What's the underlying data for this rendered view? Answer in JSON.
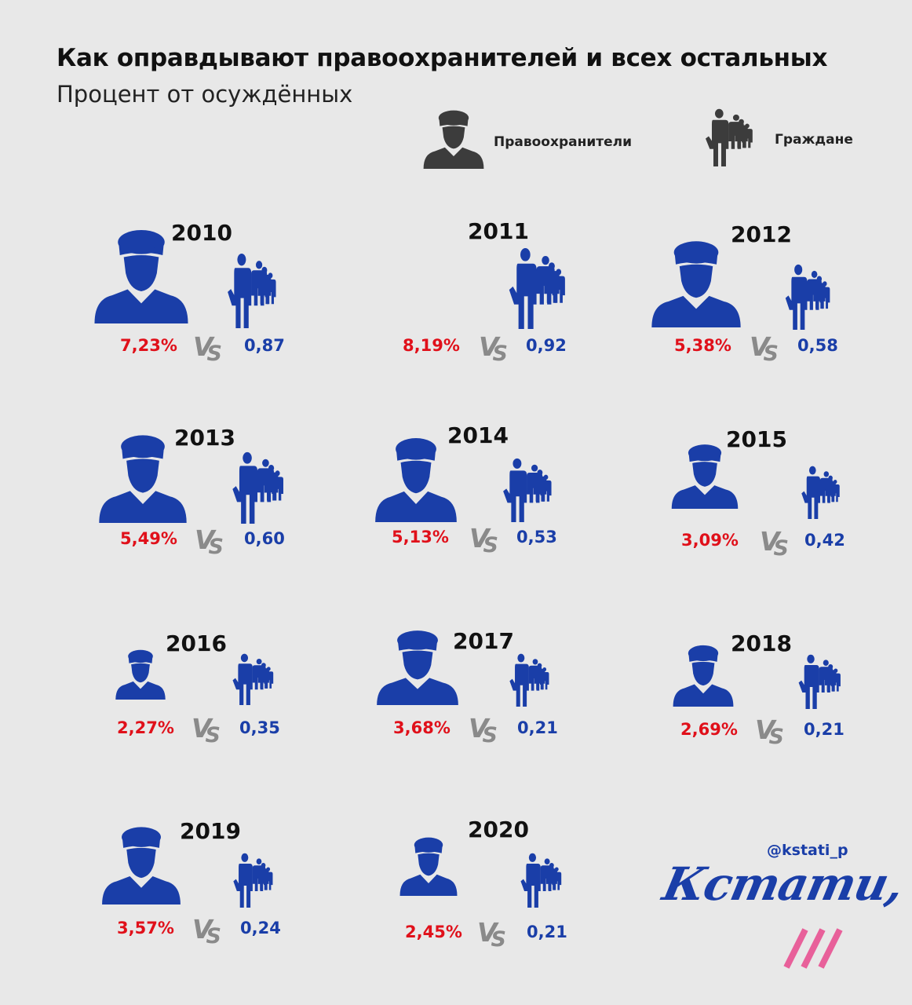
{
  "title": "Как оправдывают правоохранителей и всех остальных",
  "subtitle": "Процент от осуждённых",
  "legend": {
    "police_label": "Правоохранители",
    "police_icon": "police-officer-icon",
    "citizens_label": "Граждане",
    "citizens_icon": "citizens-group-icon"
  },
  "vs_text": {
    "v": "V",
    "s": "S"
  },
  "colors": {
    "background": "#e8e8e8",
    "police_value": "#e0101a",
    "citizen_value": "#1a3ea8",
    "icon_blue": "#1a3ea8",
    "legend_icon": "#3c3c3c",
    "vs": "#8a8a8a",
    "brand_pink": "#e8609a"
  },
  "chart_data": {
    "type": "table",
    "title": "Как оправдывают правоохранителей и всех остальных",
    "subtitle": "Процент от осуждённых",
    "series": [
      {
        "name": "Правоохранители",
        "values": [
          "7,23%",
          "8,19%",
          "5,38%",
          "5,49%",
          "5,13%",
          "3,09%",
          "2,27%",
          "3,68%",
          "2,69%",
          "3,57%",
          "2,45%"
        ]
      },
      {
        "name": "Граждане",
        "values": [
          "0,87",
          "0,92",
          "0,58",
          "0,60",
          "0,53",
          "0,42",
          "0,35",
          "0,21",
          "0,21",
          "0,24",
          "0,21"
        ]
      }
    ],
    "categories": [
      "2010",
      "2011",
      "2012",
      "2013",
      "2014",
      "2015",
      "2016",
      "2017",
      "2018",
      "2019",
      "2020"
    ]
  },
  "footer": {
    "handle": "@kstati_p",
    "logo": "Кстати,"
  }
}
